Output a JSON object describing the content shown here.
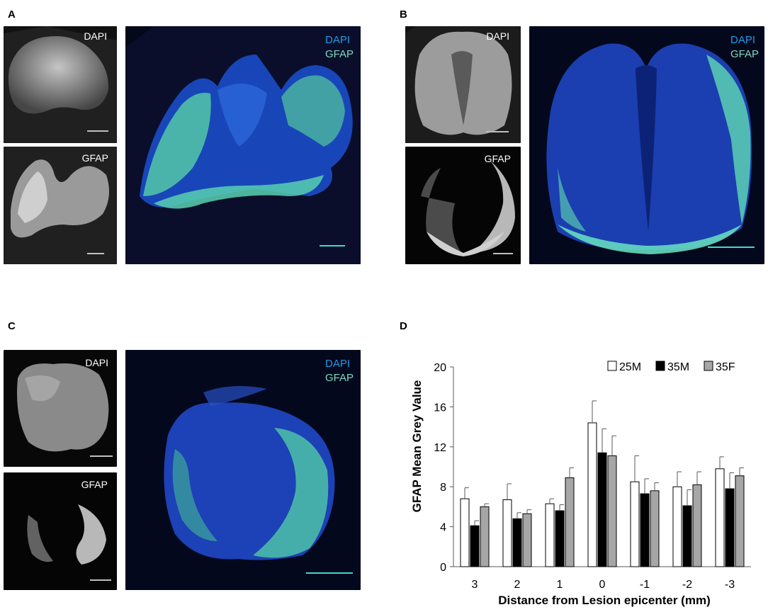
{
  "panels": {
    "A": {
      "letter": "A",
      "dapi_label": "DAPI",
      "gfap_label": "GFAP",
      "merge_label_1": "DAPI",
      "merge_label_2": "GFAP"
    },
    "B": {
      "letter": "B",
      "dapi_label": "DAPI",
      "gfap_label": "GFAP",
      "merge_label_1": "DAPI",
      "merge_label_2": "GFAP"
    },
    "C": {
      "letter": "C",
      "dapi_label": "DAPI",
      "gfap_label": "GFAP",
      "merge_label_1": "DAPI",
      "merge_label_2": "GFAP"
    },
    "D": {
      "letter": "D"
    }
  },
  "colors": {
    "dapi": "#1e6fe0",
    "gfap": "#7fe0c0",
    "scalebar_merge": "#40d8d0",
    "scalebar_gray": "#bfbfbf"
  },
  "chart_data": {
    "type": "bar",
    "categories": [
      "3",
      "2",
      "1",
      "0",
      "-1",
      "-2",
      "-3"
    ],
    "series": [
      {
        "name": "25M",
        "values": [
          6.8,
          6.7,
          6.3,
          14.4,
          8.5,
          8.0,
          9.8
        ],
        "errors": [
          1.1,
          1.6,
          0.5,
          2.2,
          2.6,
          1.5,
          1.2
        ],
        "color": "#ffffff"
      },
      {
        "name": "35M",
        "values": [
          4.1,
          4.8,
          5.6,
          11.4,
          7.3,
          6.1,
          7.8
        ],
        "errors": [
          0.5,
          0.6,
          0.6,
          2.4,
          1.5,
          1.6,
          1.6
        ],
        "color": "#000000"
      },
      {
        "name": "35F",
        "values": [
          6.0,
          5.3,
          8.9,
          11.1,
          7.6,
          8.2,
          9.1
        ],
        "errors": [
          0.3,
          0.4,
          1.0,
          2.0,
          0.8,
          1.3,
          0.8
        ],
        "color": "#a6a6a6"
      }
    ],
    "ylim": [
      0,
      20
    ],
    "yticks": [
      0,
      4,
      8,
      12,
      16,
      20
    ],
    "xlabel": "Distance from Lesion epicenter (mm)",
    "ylabel": "GFAP Mean Grey Value",
    "legend_position": "top-right",
    "grid": false
  }
}
